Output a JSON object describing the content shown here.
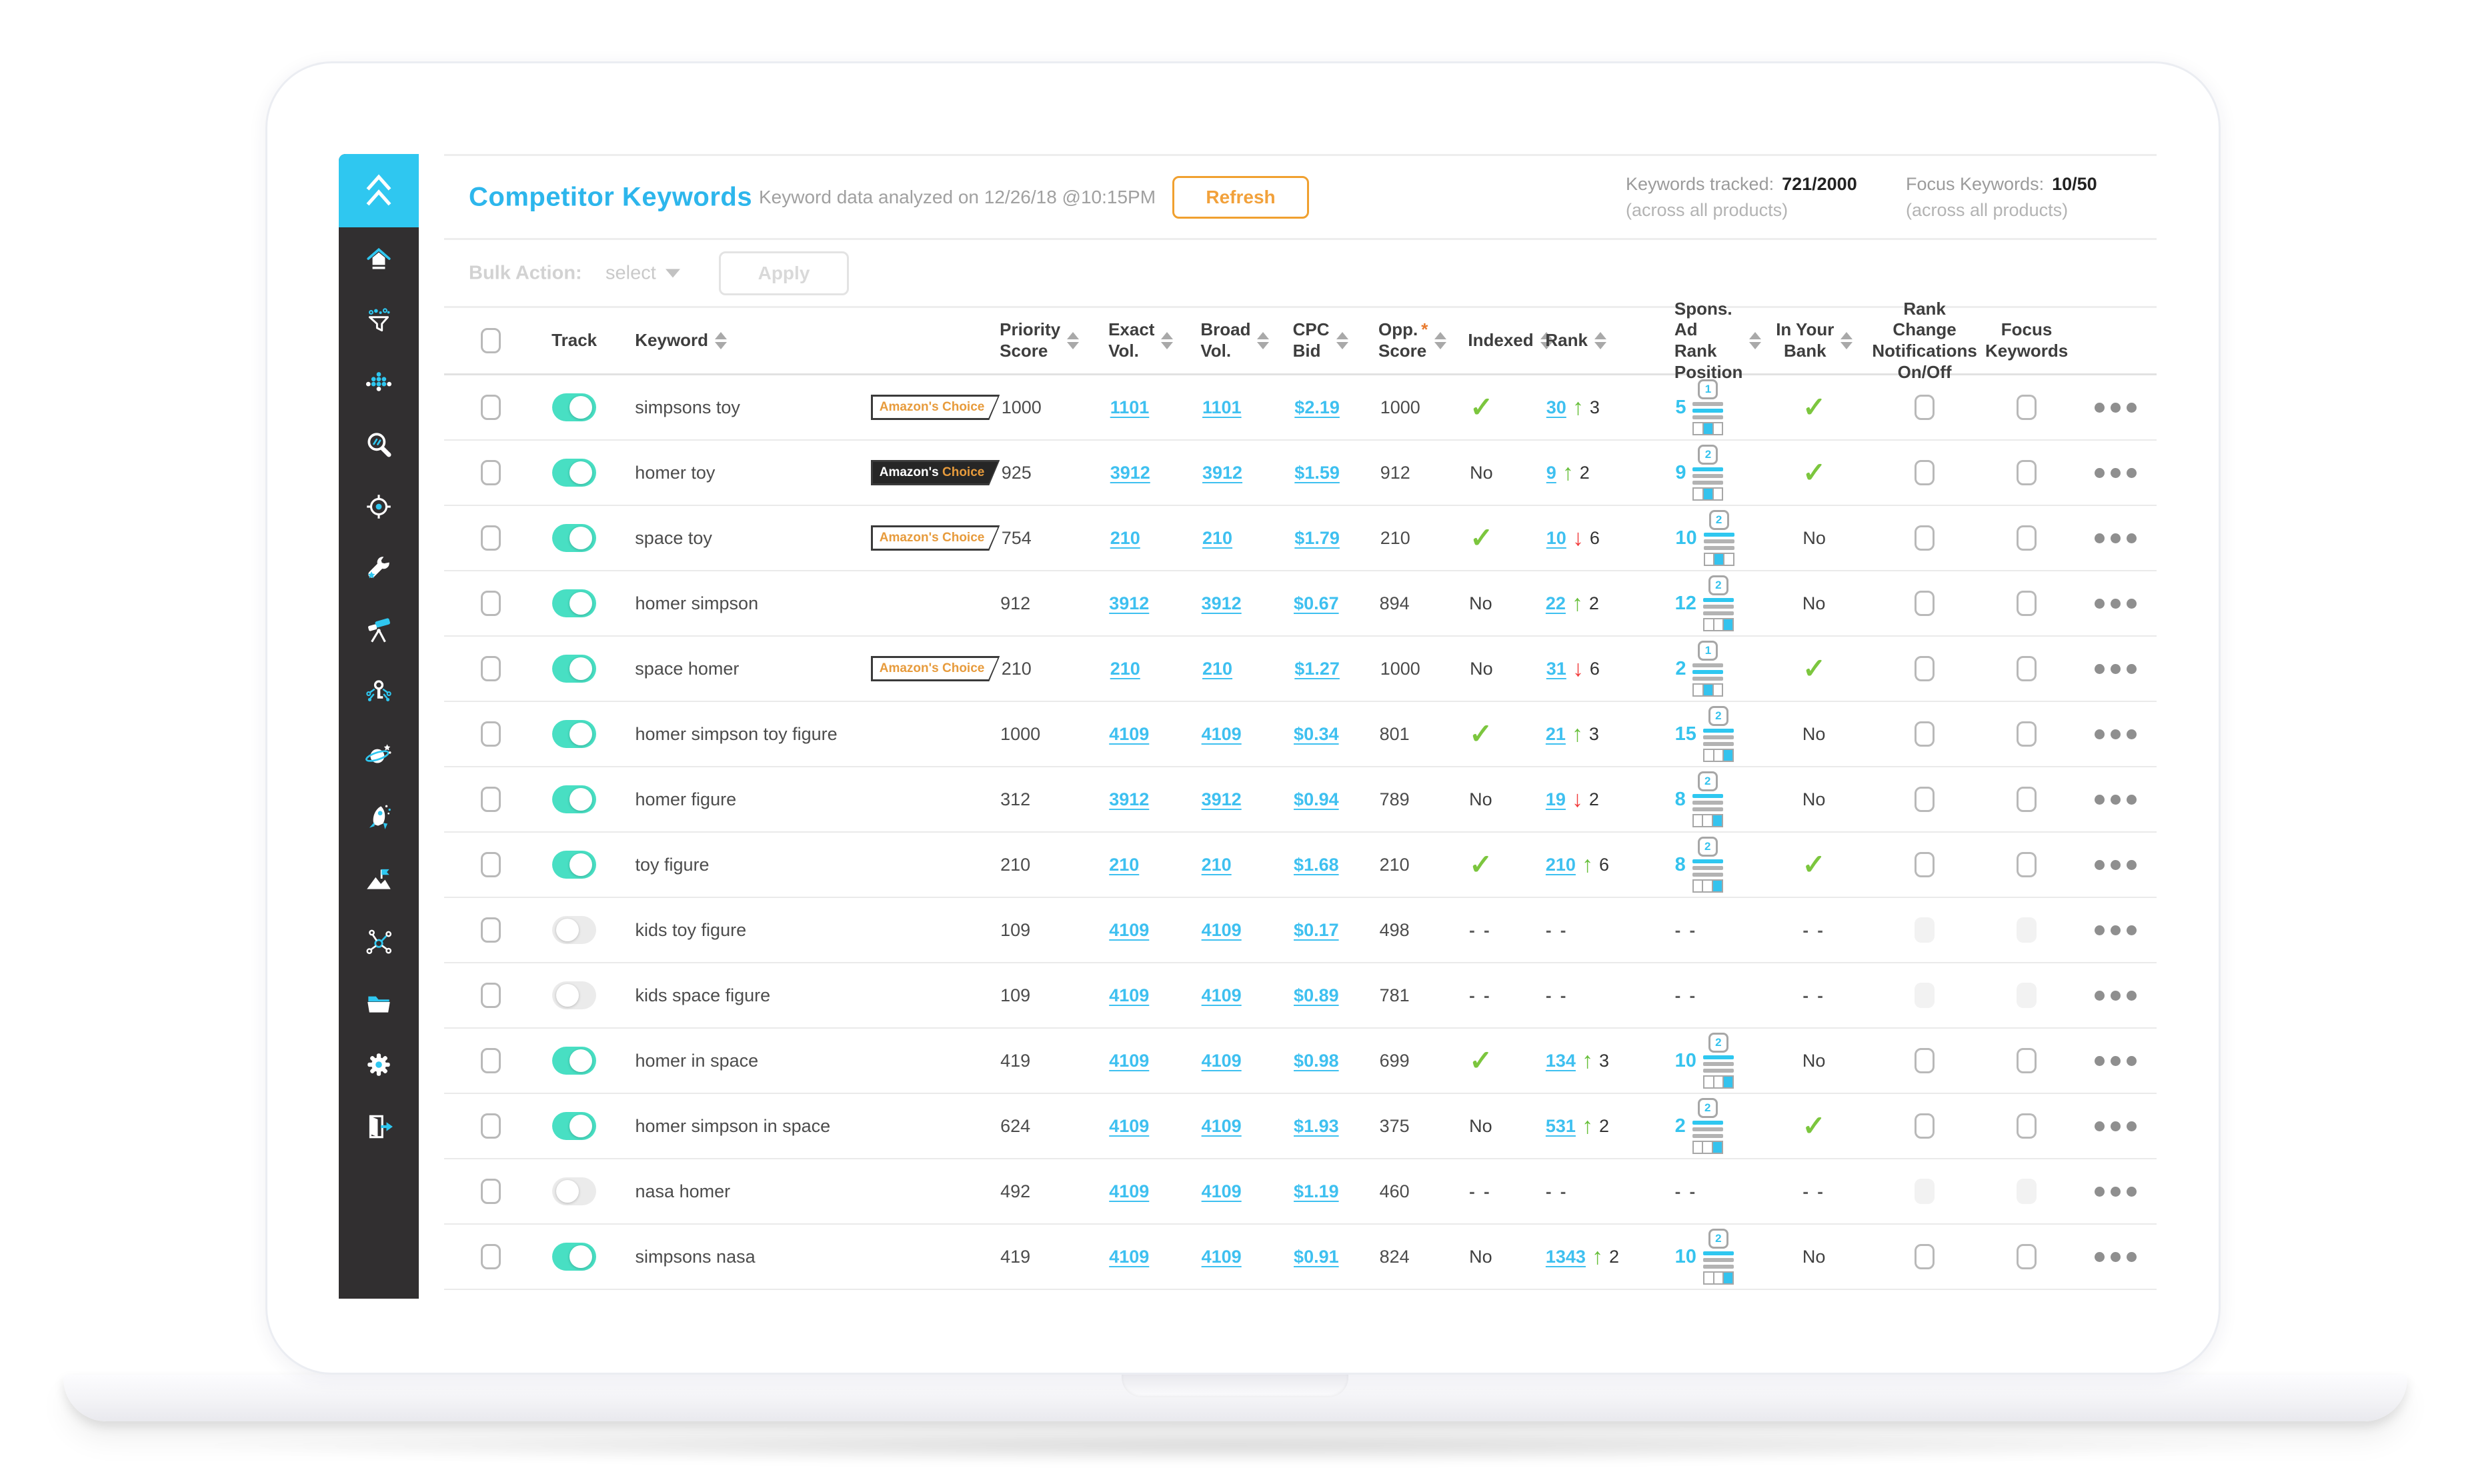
{
  "colors": {
    "accent_cyan": "#2fc7f0",
    "title_blue": "#2db6ec",
    "link_blue": "#3ec0f0",
    "toggle_teal": "#48dfc3",
    "check_green": "#7cc63e",
    "up_green": "#67bf3a",
    "down_red": "#f23c3c",
    "orange": "#f2a13b",
    "sidebar_bg": "#312f30"
  },
  "sidebar": {
    "icons": [
      {
        "name": "home"
      },
      {
        "name": "funnel"
      },
      {
        "name": "dots-cluster"
      },
      {
        "name": "search"
      },
      {
        "name": "target"
      },
      {
        "name": "wrench"
      },
      {
        "name": "telescope"
      },
      {
        "name": "key"
      },
      {
        "name": "planet"
      },
      {
        "name": "rocket"
      },
      {
        "name": "flag-mountain"
      },
      {
        "name": "network"
      },
      {
        "name": "folder"
      },
      {
        "name": "gear"
      },
      {
        "name": "logout"
      }
    ]
  },
  "header": {
    "title": "Competitor Keywords",
    "subtitle": "Keyword data analyzed on 12/26/18 @10:15PM",
    "refresh_label": "Refresh",
    "stats": [
      {
        "label": "Keywords tracked:",
        "value": "721/2000",
        "sub": "(across all products)"
      },
      {
        "label": "Focus Keywords:",
        "value": "10/50",
        "sub": "(across all products)"
      }
    ]
  },
  "bulk": {
    "label": "Bulk Action:",
    "select_label": "select",
    "apply_label": "Apply"
  },
  "table": {
    "badge_label": "Amazon's Choice",
    "symbols": {
      "check": "✓",
      "no": "No",
      "none": "- -",
      "up": "↑",
      "down": "↓"
    },
    "columns": [
      {
        "key": "select",
        "lines": [],
        "sortable": false
      },
      {
        "key": "track",
        "lines": [
          "Track"
        ],
        "sortable": false
      },
      {
        "key": "keyword",
        "lines": [
          "Keyword"
        ],
        "sortable": true
      },
      {
        "key": "badge",
        "lines": [],
        "sortable": false
      },
      {
        "key": "priority",
        "lines": [
          "Priority",
          "Score"
        ],
        "sortable": true
      },
      {
        "key": "exact",
        "lines": [
          "Exact",
          "Vol."
        ],
        "sortable": true
      },
      {
        "key": "broad",
        "lines": [
          "Broad",
          "Vol."
        ],
        "sortable": true
      },
      {
        "key": "cpc",
        "lines": [
          "CPC",
          "Bid"
        ],
        "sortable": true
      },
      {
        "key": "opp",
        "lines": [
          "Opp.",
          "Score"
        ],
        "sortable": true,
        "asterisk": true
      },
      {
        "key": "indexed",
        "lines": [
          "Indexed"
        ],
        "sortable": true
      },
      {
        "key": "rank",
        "lines": [
          "Rank"
        ],
        "sortable": true
      },
      {
        "key": "spons",
        "lines": [
          "Spons.",
          "Ad Rank",
          "Position"
        ],
        "sortable": true
      },
      {
        "key": "bank",
        "lines": [
          "In Your",
          "Bank"
        ],
        "sortable": true
      },
      {
        "key": "notif",
        "lines": [
          "Rank Change",
          "Notifications",
          "On/Off"
        ],
        "sortable": false
      },
      {
        "key": "focus",
        "lines": [
          "Focus",
          "Keywords"
        ],
        "sortable": false
      },
      {
        "key": "menu",
        "lines": [],
        "sortable": false
      }
    ],
    "rows": [
      {
        "keyword": "simpsons toy",
        "tracked": true,
        "badge": "light",
        "priority": "1000",
        "exact": "1101",
        "broad": "1101",
        "cpc": "$2.19",
        "opp": "1000",
        "indexed": "yes",
        "rank": {
          "value": "30",
          "dir": "up",
          "change": "3"
        },
        "spons": {
          "value": "5",
          "page": "1",
          "cell": 2
        },
        "bank": "yes"
      },
      {
        "keyword": "homer toy",
        "tracked": true,
        "badge": "dark",
        "priority": "925",
        "exact": "3912",
        "broad": "3912",
        "cpc": "$1.59",
        "opp": "912",
        "indexed": "no",
        "rank": {
          "value": "9",
          "dir": "up",
          "change": "2"
        },
        "spons": {
          "value": "9",
          "page": "2",
          "cell": 2
        },
        "bank": "yes"
      },
      {
        "keyword": "space toy",
        "tracked": true,
        "badge": "light",
        "priority": "754",
        "exact": "210",
        "broad": "210",
        "cpc": "$1.79",
        "opp": "210",
        "indexed": "yes",
        "rank": {
          "value": "10",
          "dir": "down",
          "change": "6"
        },
        "spons": {
          "value": "10",
          "page": "2",
          "cell": 2
        },
        "bank": "no"
      },
      {
        "keyword": "homer simpson",
        "tracked": true,
        "badge": null,
        "priority": "912",
        "exact": "3912",
        "broad": "3912",
        "cpc": "$0.67",
        "opp": "894",
        "indexed": "no",
        "rank": {
          "value": "22",
          "dir": "up",
          "change": "2"
        },
        "spons": {
          "value": "12",
          "page": "2",
          "cell": 3
        },
        "bank": "no"
      },
      {
        "keyword": "space homer",
        "tracked": true,
        "badge": "light",
        "priority": "210",
        "exact": "210",
        "broad": "210",
        "cpc": "$1.27",
        "opp": "1000",
        "indexed": "no",
        "rank": {
          "value": "31",
          "dir": "down",
          "change": "6"
        },
        "spons": {
          "value": "2",
          "page": "1",
          "cell": 2
        },
        "bank": "yes"
      },
      {
        "keyword": "homer simpson toy figure",
        "tracked": true,
        "badge": null,
        "priority": "1000",
        "exact": "4109",
        "broad": "4109",
        "cpc": "$0.34",
        "opp": "801",
        "indexed": "yes",
        "rank": {
          "value": "21",
          "dir": "up",
          "change": "3"
        },
        "spons": {
          "value": "15",
          "page": "2",
          "cell": 3
        },
        "bank": "no"
      },
      {
        "keyword": "homer figure",
        "tracked": true,
        "badge": null,
        "priority": "312",
        "exact": "3912",
        "broad": "3912",
        "cpc": "$0.94",
        "opp": "789",
        "indexed": "no",
        "rank": {
          "value": "19",
          "dir": "down",
          "change": "2"
        },
        "spons": {
          "value": "8",
          "page": "2",
          "cell": 3
        },
        "bank": "no"
      },
      {
        "keyword": "toy figure",
        "tracked": true,
        "badge": null,
        "priority": "210",
        "exact": "210",
        "broad": "210",
        "cpc": "$1.68",
        "opp": "210",
        "indexed": "yes",
        "rank": {
          "value": "210",
          "dir": "up",
          "change": "6"
        },
        "spons": {
          "value": "8",
          "page": "2",
          "cell": 3
        },
        "bank": "yes"
      },
      {
        "keyword": "kids toy figure",
        "tracked": false,
        "badge": null,
        "priority": "109",
        "exact": "4109",
        "broad": "4109",
        "cpc": "$0.17",
        "opp": "498",
        "indexed": "none",
        "rank": null,
        "spons": null,
        "bank": "none"
      },
      {
        "keyword": "kids space figure",
        "tracked": false,
        "badge": null,
        "priority": "109",
        "exact": "4109",
        "broad": "4109",
        "cpc": "$0.89",
        "opp": "781",
        "indexed": "none",
        "rank": null,
        "spons": null,
        "bank": "none"
      },
      {
        "keyword": "homer in space",
        "tracked": true,
        "badge": null,
        "priority": "419",
        "exact": "4109",
        "broad": "4109",
        "cpc": "$0.98",
        "opp": "699",
        "indexed": "yes",
        "rank": {
          "value": "134",
          "dir": "up",
          "change": "3"
        },
        "spons": {
          "value": "10",
          "page": "2",
          "cell": 3
        },
        "bank": "no"
      },
      {
        "keyword": "homer simpson in space",
        "tracked": true,
        "badge": null,
        "priority": "624",
        "exact": "4109",
        "broad": "4109",
        "cpc": "$1.93",
        "opp": "375",
        "indexed": "no",
        "rank": {
          "value": "531",
          "dir": "up",
          "change": "2"
        },
        "spons": {
          "value": "2",
          "page": "2",
          "cell": 3
        },
        "bank": "yes"
      },
      {
        "keyword": "nasa homer",
        "tracked": false,
        "badge": null,
        "priority": "492",
        "exact": "4109",
        "broad": "4109",
        "cpc": "$1.19",
        "opp": "460",
        "indexed": "none",
        "rank": null,
        "spons": null,
        "bank": "none"
      },
      {
        "keyword": "simpsons nasa",
        "tracked": true,
        "badge": null,
        "priority": "419",
        "exact": "4109",
        "broad": "4109",
        "cpc": "$0.91",
        "opp": "824",
        "indexed": "no",
        "rank": {
          "value": "1343",
          "dir": "up",
          "change": "2"
        },
        "spons": {
          "value": "10",
          "page": "2",
          "cell": 3
        },
        "bank": "no"
      }
    ]
  }
}
